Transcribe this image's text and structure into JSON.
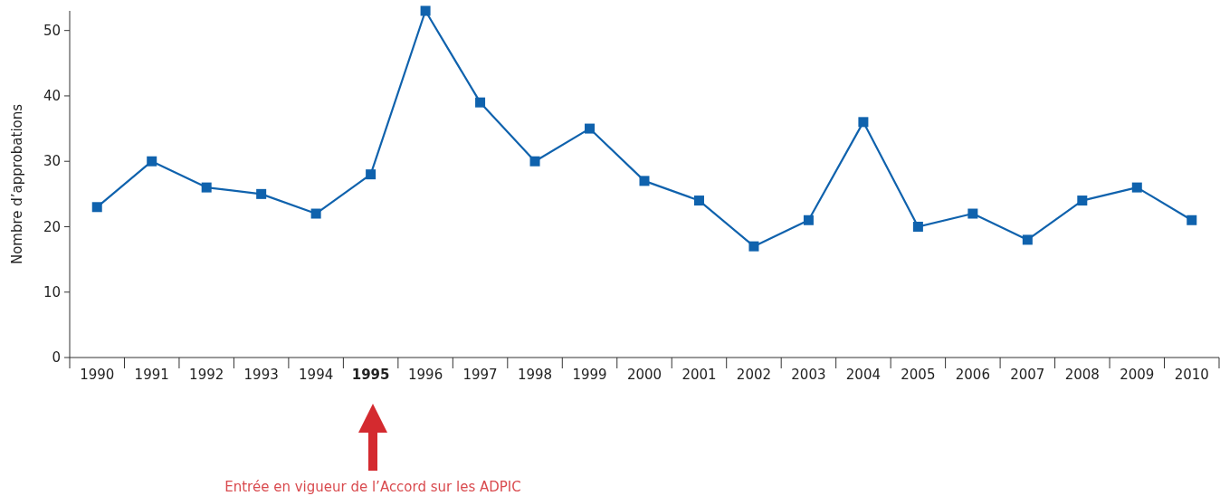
{
  "chart_data": {
    "type": "line",
    "ylabel": "Nombre d’approbations",
    "categories": [
      "1990",
      "1991",
      "1992",
      "1993",
      "1994",
      "1995",
      "1996",
      "1997",
      "1998",
      "1999",
      "2000",
      "2001",
      "2002",
      "2003",
      "2004",
      "2005",
      "2006",
      "2007",
      "2008",
      "2009",
      "2010"
    ],
    "series": [
      {
        "color": "#0f62ad",
        "values": [
          23,
          30,
          26,
          25,
          22,
          28,
          53,
          39,
          30,
          35,
          27,
          24,
          17,
          21,
          36,
          20,
          22,
          18,
          24,
          26,
          21
        ]
      }
    ],
    "ylim": [
      0,
      53
    ],
    "yticks": [
      0,
      10,
      20,
      30,
      40,
      50
    ],
    "grid": false,
    "marker": "square",
    "line_style": "solid",
    "annotations": [
      "Entrée en vigueur de l’Accord sur les ADPIC"
    ]
  }
}
